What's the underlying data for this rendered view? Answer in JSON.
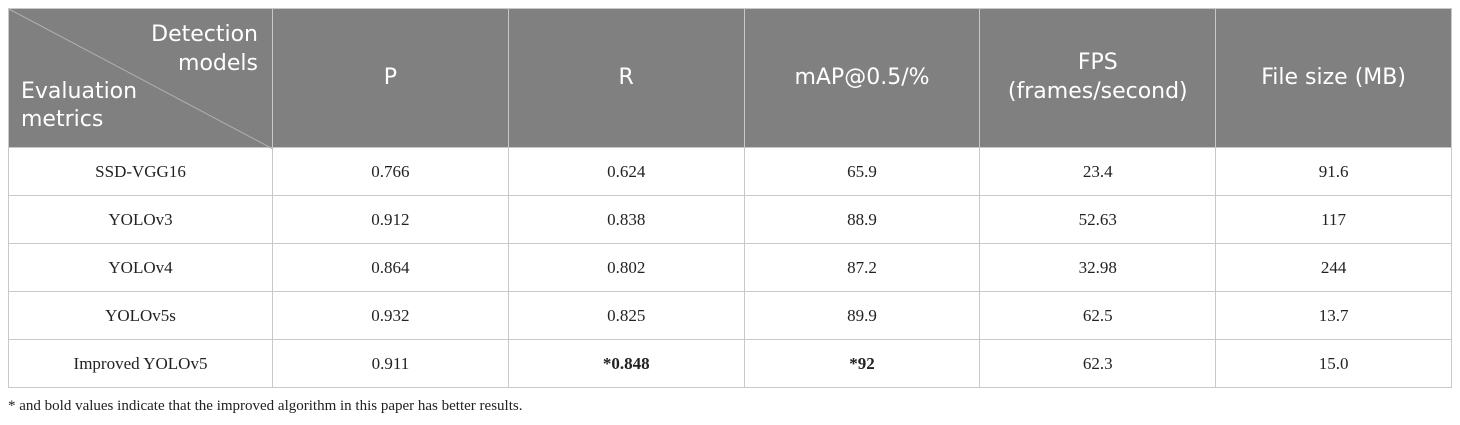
{
  "table": {
    "corner": {
      "top": "Detection models",
      "bottom": "Evaluation metrics"
    },
    "columns": [
      "P",
      "R",
      "mAP@0.5/%",
      "FPS (frames/second)",
      "File size (MB)"
    ],
    "rows": [
      [
        "SSD-VGG16",
        "0.766",
        "0.624",
        "65.9",
        "23.4",
        "91.6"
      ],
      [
        "YOLOv3",
        "0.912",
        "0.838",
        "88.9",
        "52.63",
        "117"
      ],
      [
        "YOLOv4",
        "0.864",
        "0.802",
        "87.2",
        "32.98",
        "244"
      ],
      [
        "YOLOv5s",
        "0.932",
        "0.825",
        "89.9",
        "62.5",
        "13.7"
      ],
      [
        "Improved YOLOv5",
        "0.911",
        {
          "text": "*0.848",
          "bold": true
        },
        {
          "text": "*92",
          "bold": true
        },
        "62.3",
        "15.0"
      ]
    ]
  },
  "footnote": "* and bold values indicate that the improved algorithm in this paper has better results."
}
